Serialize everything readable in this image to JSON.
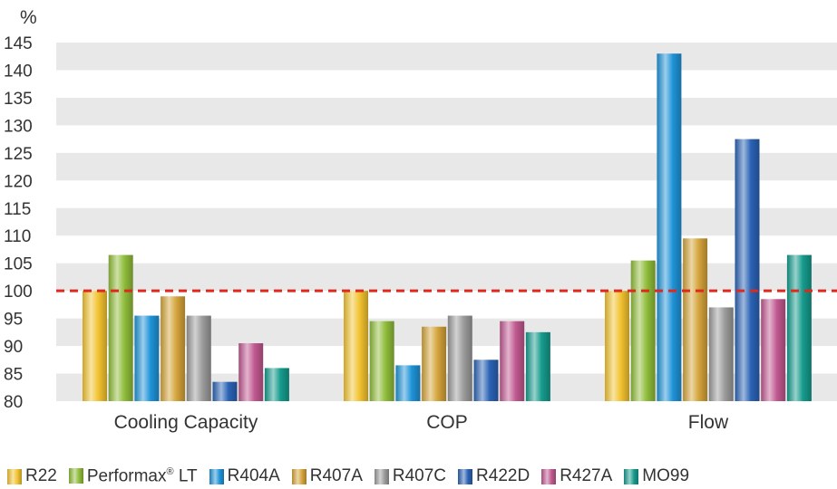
{
  "chart_data": {
    "type": "bar",
    "unit_label": "%",
    "categories": [
      "Cooling Capacity",
      "COP",
      "Flow"
    ],
    "ylim": [
      80,
      145
    ],
    "yticks": [
      80,
      85,
      90,
      95,
      100,
      105,
      110,
      115,
      120,
      125,
      130,
      135,
      140,
      145
    ],
    "reference_line": {
      "value": 100,
      "color": "#e0281e",
      "style": "dashed"
    },
    "grid": "alternating horizontal bands",
    "legend_position": "bottom",
    "series": [
      {
        "name": "R22",
        "color": "#f2c230",
        "values": [
          100,
          100,
          100
        ]
      },
      {
        "name": "Performax® LT",
        "color": "#8fbc3a",
        "values": [
          106.5,
          94.5,
          105.5
        ]
      },
      {
        "name": "R404A",
        "color": "#1f93d8",
        "values": [
          95.5,
          86.5,
          143
        ]
      },
      {
        "name": "R407A",
        "color": "#d4a33a",
        "values": [
          99,
          93.5,
          109.5
        ]
      },
      {
        "name": "R407C",
        "color": "#9a9a9a",
        "values": [
          95.5,
          95.5,
          97
        ]
      },
      {
        "name": "R422D",
        "color": "#2a62b4",
        "values": [
          83.5,
          87.5,
          127.5
        ]
      },
      {
        "name": "R427A",
        "color": "#c0588f",
        "values": [
          90.5,
          94.5,
          98.5
        ]
      },
      {
        "name": "MO99",
        "color": "#159a8c",
        "values": [
          86,
          92.5,
          106.5
        ]
      }
    ]
  }
}
